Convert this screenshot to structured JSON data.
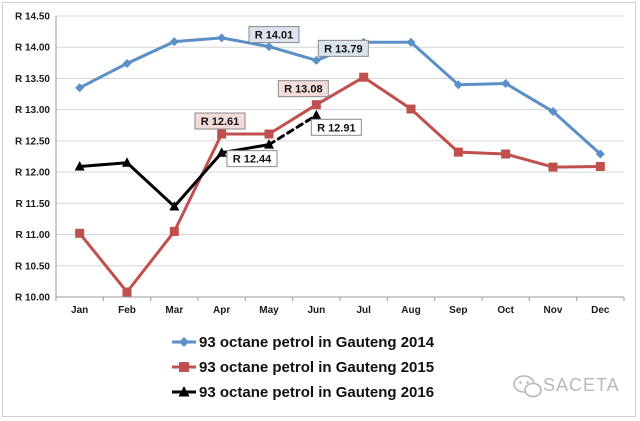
{
  "chart_data": {
    "type": "line",
    "categories": [
      "Jan",
      "Feb",
      "Mar",
      "Apr",
      "May",
      "Jun",
      "Jul",
      "Aug",
      "Sep",
      "Oct",
      "Nov",
      "Dec"
    ],
    "y_tick_labels": [
      "R 10.00",
      "R 10.50",
      "R 11.00",
      "R 11.50",
      "R 12.00",
      "R 12.50",
      "R 13.00",
      "R 13.50",
      "R 14.00",
      "R 14.50"
    ],
    "ylim": [
      10.0,
      14.5
    ],
    "y_step": 0.5,
    "grid": true,
    "legend_position": "bottom",
    "series": [
      {
        "name": "93 octane petrol in Gauteng 2014",
        "color": "#5b8fc7",
        "marker": "diamond",
        "values": [
          13.35,
          13.74,
          14.09,
          14.15,
          14.01,
          13.79,
          14.08,
          14.08,
          13.4,
          13.42,
          12.97,
          12.29
        ]
      },
      {
        "name": "93 octane petrol in Gauteng 2015",
        "color": "#c0504d",
        "marker": "square",
        "values": [
          11.02,
          10.08,
          11.05,
          12.61,
          12.61,
          13.08,
          13.52,
          13.01,
          12.32,
          12.29,
          12.08,
          12.09
        ]
      },
      {
        "name": "93 octane petrol in Gauteng 2016",
        "color": "#000000",
        "marker": "triangle",
        "values": [
          12.09,
          12.15,
          11.45,
          12.31,
          12.44,
          12.91,
          null,
          null,
          null,
          null,
          null,
          null
        ],
        "dashed_from_index": 4
      }
    ],
    "annotations": [
      {
        "text": "R 14.01",
        "series": 0,
        "index": 4,
        "bg": "#dce3ef"
      },
      {
        "text": "R 13.79",
        "series": 0,
        "index": 5,
        "bg": "#dce3ef"
      },
      {
        "text": "R 13.08",
        "series": 1,
        "index": 5,
        "bg": "#f2dcdb"
      },
      {
        "text": "R 12.61",
        "series": 1,
        "index": 4,
        "bg": "#f2dcdb"
      },
      {
        "text": "R 12.44",
        "series": 2,
        "index": 4,
        "bg": "#ffffff"
      },
      {
        "text": "R 12.91",
        "series": 2,
        "index": 5,
        "bg": "#ffffff"
      }
    ]
  },
  "watermark": {
    "text": "SACETA",
    "icon": "wechat-icon"
  }
}
